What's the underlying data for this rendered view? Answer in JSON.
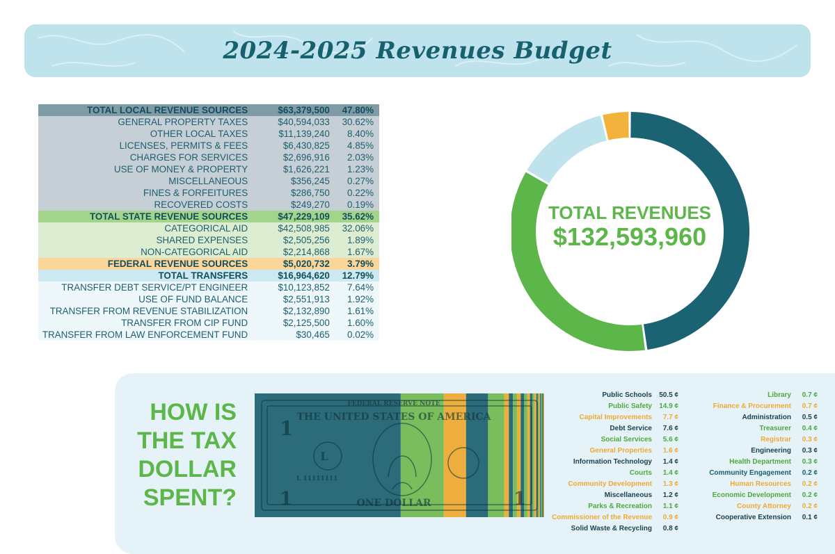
{
  "title": "2024-2025 Revenues Budget",
  "revenue_table": [
    {
      "label": "TOTAL LOCAL REVENUE SOURCES",
      "amount": "$63,379,500",
      "percent": "47.80%",
      "kind": "local-total"
    },
    {
      "label": "GENERAL PROPERTY TAXES",
      "amount": "$40,594,033",
      "percent": "30.62%",
      "kind": "local"
    },
    {
      "label": "OTHER LOCAL TAXES",
      "amount": "$11,139,240",
      "percent": "8.40%",
      "kind": "local"
    },
    {
      "label": "LICENSES, PERMITS & FEES",
      "amount": "$6,430,825",
      "percent": "4.85%",
      "kind": "local"
    },
    {
      "label": "CHARGES FOR SERVICES",
      "amount": "$2,696,916",
      "percent": "2.03%",
      "kind": "local"
    },
    {
      "label": "USE OF MONEY & PROPERTY",
      "amount": "$1,626,221",
      "percent": "1.23%",
      "kind": "local"
    },
    {
      "label": "MISCELLANEOUS",
      "amount": "$356,245",
      "percent": "0.27%",
      "kind": "local"
    },
    {
      "label": "FINES & FORFEITURES",
      "amount": "$286,750",
      "percent": "0.22%",
      "kind": "local"
    },
    {
      "label": "RECOVERED COSTS",
      "amount": "$249,270",
      "percent": "0.19%",
      "kind": "local"
    },
    {
      "label": "TOTAL STATE REVENUE SOURCES",
      "amount": "$47,229,109",
      "percent": "35.62%",
      "kind": "state-total"
    },
    {
      "label": "CATEGORICAL AID",
      "amount": "$42,508,985",
      "percent": "32.06%",
      "kind": "state"
    },
    {
      "label": "SHARED EXPENSES",
      "amount": "$2,505,256",
      "percent": "1.89%",
      "kind": "state"
    },
    {
      "label": "NON-CATEGORICAL AID",
      "amount": "$2,214,868",
      "percent": "1.67%",
      "kind": "state"
    },
    {
      "label": "FEDERAL REVENUE SOURCES",
      "amount": "$5,020,732",
      "percent": "3.79%",
      "kind": "federal"
    },
    {
      "label": "TOTAL TRANSFERS",
      "amount": "$16,964,620",
      "percent": "12.79%",
      "kind": "transfer-total"
    },
    {
      "label": "TRANSFER DEBT SERVICE/PT ENGINEER",
      "amount": "$10,123,852",
      "percent": "7.64%",
      "kind": "transfer"
    },
    {
      "label": "USE OF FUND BALANCE",
      "amount": "$2,551,913",
      "percent": "1.92%",
      "kind": "transfer"
    },
    {
      "label": "TRANSFER FROM REVENUE STABILIZATION",
      "amount": "$2,132,890",
      "percent": "1.61%",
      "kind": "transfer"
    },
    {
      "label": "TRANSFER FROM CIP FUND",
      "amount": "$2,125,500",
      "percent": "1.60%",
      "kind": "transfer"
    },
    {
      "label": "TRANSFER FROM LAW ENFORCEMENT FUND",
      "amount": "$30,465",
      "percent": "0.02%",
      "kind": "transfer"
    }
  ],
  "chart_data": [
    {
      "type": "pie",
      "donut": true,
      "center_label": "TOTAL REVENUES",
      "center_value": "$132,593,960",
      "categories": [
        "Total Local Revenue Sources",
        "Total State Revenue Sources",
        "Total Transfers",
        "Federal Revenue Sources"
      ],
      "values": [
        47.8,
        35.62,
        12.79,
        3.79
      ],
      "colors": [
        "#1b6373",
        "#5db64a",
        "#bfe3ec",
        "#f2b23c"
      ]
    },
    {
      "type": "bar",
      "stacked": true,
      "title": "HOW IS THE TAX DOLLAR SPENT?",
      "unit": "¢",
      "categories": [
        "Public Schools",
        "Public Safety",
        "Capital Improvements",
        "Debt Service",
        "Social Services",
        "General Properties",
        "Information Technology",
        "Courts",
        "Community Development",
        "Miscellaneous",
        "Parks & Recreation",
        "Commissioner of the Revenue",
        "Solid Waste & Recycling",
        "Library",
        "Finance & Procurement",
        "Administration",
        "Treasurer",
        "Registrar",
        "Engineering",
        "Health Department",
        "Community Engagement",
        "Human Resources",
        "Economic Development",
        "County Attorney",
        "Cooperative Extension"
      ],
      "values": [
        50.5,
        14.9,
        7.7,
        7.6,
        5.6,
        1.6,
        1.4,
        1.4,
        1.3,
        1.2,
        1.1,
        0.9,
        0.8,
        0.7,
        0.7,
        0.5,
        0.4,
        0.3,
        0.3,
        0.3,
        0.2,
        0.2,
        0.2,
        0.2,
        0.1
      ],
      "labels": [
        "50.5 ¢",
        "14.9 ¢",
        "7.7 ¢",
        "7.6 ¢",
        "5.6 ¢",
        "1.6 ¢",
        "1.4 ¢",
        "1.4 ¢",
        "1.3 ¢",
        "1.2 ¢",
        "1.1 ¢",
        "0.9 ¢",
        "0.8 ¢",
        "0.7 ¢",
        "0.7 ¢",
        "0.5 ¢",
        "0.4 ¢",
        "0.3 ¢",
        "0.3 ¢",
        "0.3 ¢",
        "0.2 ¢",
        "0.2 ¢",
        "0.2 ¢",
        "0.2 ¢",
        "0.1 ¢"
      ],
      "colors": [
        "#1c3f4d",
        "#4ea93d",
        "#f0a935",
        "#1c3f4d",
        "#4ea93d",
        "#f0a935",
        "#1c3f4d",
        "#4ea93d",
        "#f0a935",
        "#1c3f4d",
        "#4ea93d",
        "#f0a935",
        "#1c3f4d",
        "#4ea93d",
        "#f0a935",
        "#1c3f4d",
        "#4ea93d",
        "#f0a935",
        "#1c3f4d",
        "#4ea93d",
        "#17606e",
        "#f0a935",
        "#4ea93d",
        "#f0a935",
        "#1c3f4d"
      ]
    }
  ],
  "how_lines": [
    "HOW IS",
    "THE TAX",
    "DOLLAR",
    "SPENT?"
  ],
  "bill_text": {
    "top": "FEDERAL RESERVE NOTE",
    "country": "THE UNITED STATES OF AMERICA",
    "denomination": "ONE DOLLAR",
    "numeral": "1",
    "serial": "L 11111111",
    "seal_letter": "L"
  }
}
